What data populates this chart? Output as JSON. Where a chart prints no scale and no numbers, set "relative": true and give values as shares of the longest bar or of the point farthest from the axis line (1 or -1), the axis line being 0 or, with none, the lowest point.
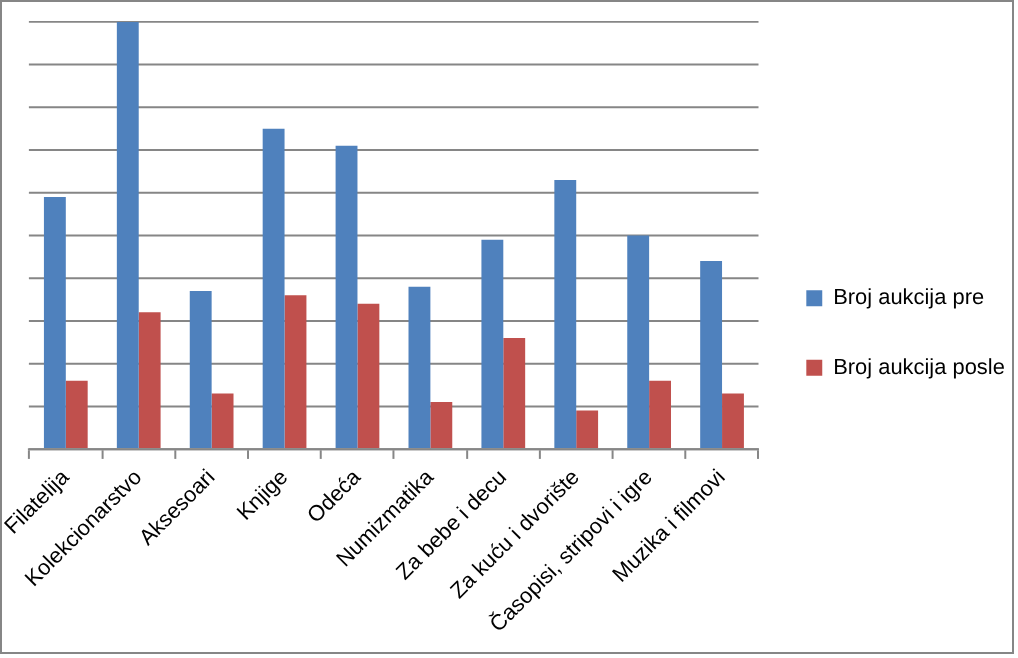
{
  "chart_data": {
    "type": "bar",
    "relative": true,
    "grid": "y",
    "legend": "right",
    "categories": [
      "Filatelija",
      "Kolekcionarstvo",
      "Aksesoari",
      "Knjige",
      "Odeća",
      "Numizmatika",
      "Za bebe i decu",
      "Za kuću i dvorište",
      "Časopisi, stripovi i igre",
      "Muzika i filmovi"
    ],
    "series": [
      {
        "name": "Broj aukcija pre",
        "color": "#4f81bd",
        "values": [
          0.59,
          1,
          0.37,
          0.75,
          0.71,
          0.38,
          0.49,
          0.63,
          0.5,
          0.44
        ]
      },
      {
        "name": "Broj aukcija posle",
        "color": "#c0504d",
        "values": [
          0.16,
          0.32,
          0.13,
          0.36,
          0.34,
          0.11,
          0.26,
          0.09,
          0.16,
          0.13
        ]
      }
    ]
  }
}
